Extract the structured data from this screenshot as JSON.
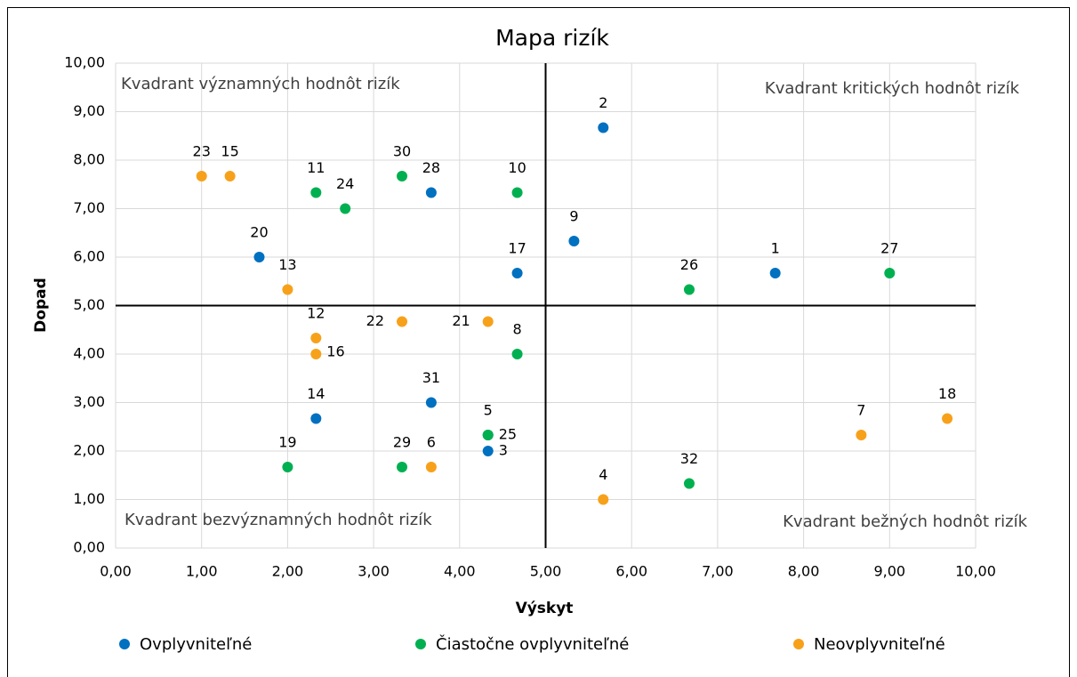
{
  "chart_data": {
    "type": "scatter",
    "title": "Mapa rizík",
    "x_label": "Výskyt",
    "y_label": "Dopad",
    "xlim": [
      0,
      10
    ],
    "ylim": [
      0,
      10
    ],
    "xticks": [
      {
        "value": 0,
        "label": "0,00"
      },
      {
        "value": 1,
        "label": "1,00"
      },
      {
        "value": 2,
        "label": "2,00"
      },
      {
        "value": 3,
        "label": "3,00"
      },
      {
        "value": 4,
        "label": "4,00"
      },
      {
        "value": 5,
        "label": "5,00"
      },
      {
        "value": 6,
        "label": "6,00"
      },
      {
        "value": 7,
        "label": "7,00"
      },
      {
        "value": 8,
        "label": "8,00"
      },
      {
        "value": 9,
        "label": "9,00"
      },
      {
        "value": 10,
        "label": "10,00"
      }
    ],
    "yticks": [
      {
        "value": 0,
        "label": "0,00"
      },
      {
        "value": 1,
        "label": "1,00"
      },
      {
        "value": 2,
        "label": "2,00"
      },
      {
        "value": 3,
        "label": "3,00"
      },
      {
        "value": 4,
        "label": "4,00"
      },
      {
        "value": 5,
        "label": "5,00"
      },
      {
        "value": 6,
        "label": "6,00"
      },
      {
        "value": 7,
        "label": "7,00"
      },
      {
        "value": 8,
        "label": "8,00"
      },
      {
        "value": 9,
        "label": "9,00"
      },
      {
        "value": 10,
        "label": "10,00"
      }
    ],
    "grid": true,
    "quadrant_lines": {
      "x": 5,
      "y": 5
    },
    "annotations": [
      "Kvadrant významných hodnôt rizík",
      "Kvadrant kritických hodnôt rizík",
      "Kvadrant bezvýznamných hodnôt rizík",
      "Kvadrant bežných hodnôt rizík"
    ],
    "legend": "bottom",
    "series": [
      {
        "name": "Ovplyvniteľné",
        "color": "#0070c0",
        "labels": [
          "2",
          "9",
          "17",
          "1",
          "28",
          "20",
          "14",
          "31",
          "5",
          "3"
        ],
        "x": [
          5.67,
          5.33,
          4.67,
          7.67,
          3.67,
          1.67,
          2.33,
          3.67,
          4.33,
          4.33
        ],
        "y": [
          8.67,
          6.33,
          5.67,
          5.67,
          7.33,
          6.0,
          2.67,
          3.0,
          2.33,
          2.0
        ]
      },
      {
        "name": "Čiastočne ovplyvniteľné",
        "color": "#00b050",
        "labels": [
          "11",
          "24",
          "30",
          "10",
          "26",
          "27",
          "8",
          "19",
          "29",
          "32",
          "25"
        ],
        "x": [
          2.33,
          2.67,
          3.33,
          4.67,
          6.67,
          9.0,
          4.67,
          2.0,
          3.33,
          6.67,
          4.33
        ],
        "y": [
          7.33,
          7.0,
          7.67,
          7.33,
          5.33,
          5.67,
          4.0,
          1.67,
          1.67,
          1.33,
          2.33
        ]
      },
      {
        "name": "Neovplyvniteľné",
        "color": "#f7a11a",
        "labels": [
          "23",
          "15",
          "13",
          "12",
          "16",
          "22",
          "21",
          "6",
          "4",
          "7",
          "18"
        ],
        "x": [
          1.0,
          1.33,
          2.0,
          2.33,
          2.33,
          3.33,
          4.33,
          3.67,
          5.67,
          8.67,
          9.67
        ],
        "y": [
          7.67,
          7.67,
          5.33,
          4.33,
          4.0,
          4.67,
          4.67,
          1.67,
          1.0,
          2.33,
          2.67
        ]
      }
    ]
  }
}
